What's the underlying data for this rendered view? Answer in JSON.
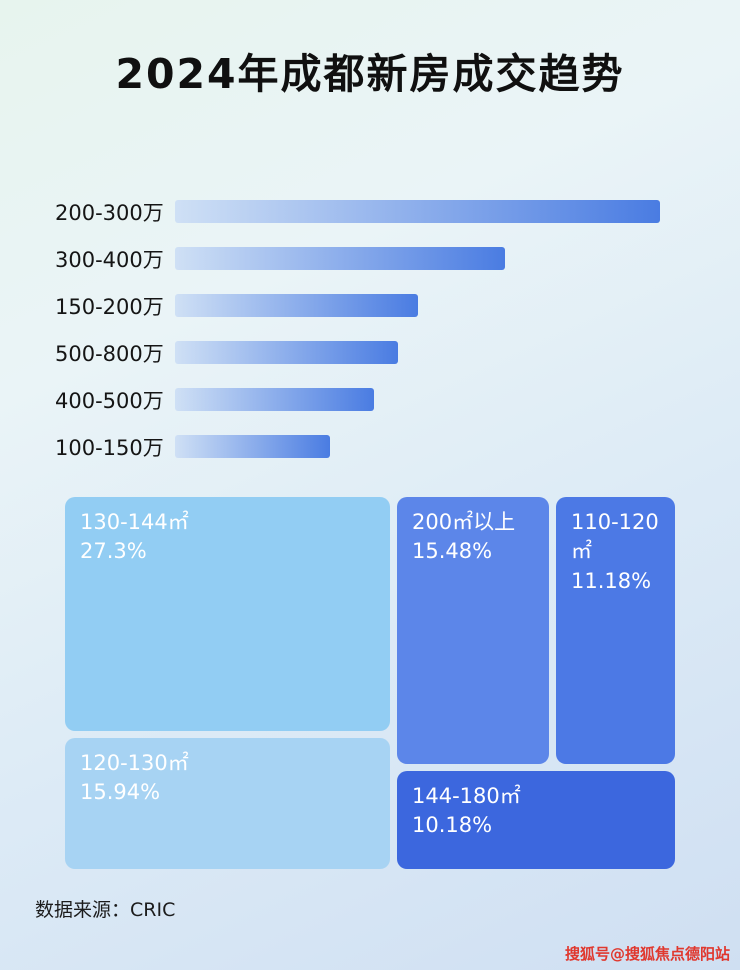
{
  "page": {
    "title": "2024年成都新房成交趋势",
    "source_note": "数据来源：CRIC",
    "watermark": "搜狐号@搜狐焦点德阳站"
  },
  "colors": {
    "bar_gradient_start": "#cfe0f5",
    "bar_gradient_end": "#4a7ce2",
    "watermark_red": "#e0382e"
  },
  "chart_data": [
    {
      "type": "bar",
      "orientation": "horizontal",
      "categories": [
        "200-300万",
        "300-400万",
        "150-200万",
        "500-800万",
        "400-500万",
        "100-150万"
      ],
      "values": [
        100,
        68,
        50,
        46,
        41,
        32
      ],
      "value_note": "relative bar length as % of longest bar; no numeric axis or data labels shown in image",
      "grid": false,
      "legend": false
    },
    {
      "type": "treemap",
      "items": [
        {
          "label": "130-144㎡",
          "value": 27.3,
          "value_label": "27.3%",
          "color": "#92cdf3"
        },
        {
          "label": "200㎡以上",
          "value": 15.48,
          "value_label": "15.48%",
          "color": "#5c86e9"
        },
        {
          "label": "110-120㎡",
          "value": 11.18,
          "value_label": "11.18%",
          "color": "#4c79e5"
        },
        {
          "label": "120-130㎡",
          "value": 15.94,
          "value_label": "15.94%",
          "color": "#a7d3f3"
        },
        {
          "label": "144-180㎡",
          "value": 10.18,
          "value_label": "10.18%",
          "color": "#3c67de"
        }
      ]
    }
  ]
}
